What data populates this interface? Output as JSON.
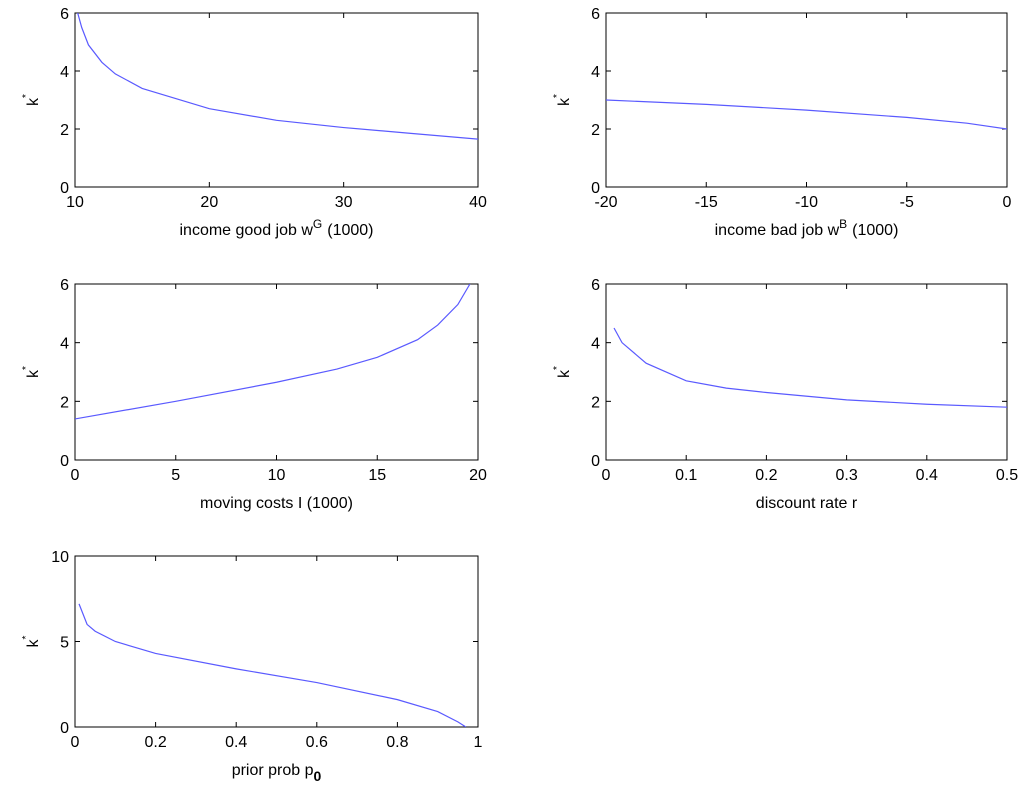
{
  "chart_data": [
    {
      "type": "line",
      "xlabel": "income good job w",
      "xlabel_sup": "G",
      "xlabel_after": "(1000)",
      "ylabel": "k",
      "ylabel_sup": "*",
      "x": [
        10.2,
        10.5,
        11,
        12,
        13,
        15,
        20,
        25,
        30,
        35,
        40
      ],
      "series": [
        {
          "color": "#5a5aff",
          "values": [
            6,
            5.5,
            4.9,
            4.3,
            3.9,
            3.4,
            2.7,
            2.3,
            2.05,
            1.85,
            1.65
          ]
        }
      ],
      "xlim": [
        10,
        40
      ],
      "xticks": [
        10,
        20,
        30,
        40
      ],
      "ylim": [
        0,
        6
      ],
      "yticks": [
        0,
        2,
        4,
        6
      ]
    },
    {
      "type": "line",
      "xlabel": "income bad job w",
      "xlabel_sup": "B",
      "xlabel_after": "(1000)",
      "ylabel": "k",
      "ylabel_sup": "*",
      "x": [
        -20,
        -15,
        -10,
        -5,
        -2,
        0
      ],
      "series": [
        {
          "color": "#5a5aff",
          "values": [
            3.0,
            2.85,
            2.65,
            2.4,
            2.2,
            2.0
          ]
        }
      ],
      "xlim": [
        -20,
        0
      ],
      "xticks": [
        -20,
        -15,
        -10,
        -5,
        0
      ],
      "ylim": [
        0,
        6
      ],
      "yticks": [
        0,
        2,
        4,
        6
      ]
    },
    {
      "type": "line",
      "xlabel": "moving costs I (1000)",
      "ylabel": "k",
      "ylabel_sup": "*",
      "x": [
        0,
        5,
        10,
        13,
        15,
        17,
        18,
        19,
        19.6
      ],
      "series": [
        {
          "color": "#5a5aff",
          "values": [
            1.4,
            2.0,
            2.65,
            3.1,
            3.5,
            4.1,
            4.6,
            5.3,
            6
          ]
        }
      ],
      "xlim": [
        0,
        20
      ],
      "xticks": [
        0,
        5,
        10,
        15,
        20
      ],
      "ylim": [
        0,
        6
      ],
      "yticks": [
        0,
        2,
        4,
        6
      ]
    },
    {
      "type": "line",
      "xlabel": "discount rate r",
      "ylabel": "k",
      "ylabel_sup": "*",
      "x": [
        0.01,
        0.02,
        0.05,
        0.1,
        0.15,
        0.2,
        0.3,
        0.4,
        0.5
      ],
      "series": [
        {
          "color": "#5a5aff",
          "values": [
            4.5,
            4.0,
            3.3,
            2.7,
            2.45,
            2.3,
            2.05,
            1.9,
            1.8
          ]
        }
      ],
      "xlim": [
        0,
        0.5
      ],
      "xticks": [
        0,
        0.1,
        0.2,
        0.3,
        0.4,
        0.5
      ],
      "ylim": [
        0,
        6
      ],
      "yticks": [
        0,
        2,
        4,
        6
      ]
    },
    {
      "type": "line",
      "xlabel": "prior prob p",
      "xlabel_sub": "0",
      "ylabel": "k",
      "ylabel_sup": "*",
      "x": [
        0.01,
        0.03,
        0.05,
        0.1,
        0.2,
        0.4,
        0.6,
        0.8,
        0.9,
        0.95,
        0.97
      ],
      "series": [
        {
          "color": "#5a5aff",
          "values": [
            7.2,
            6.0,
            5.6,
            5.0,
            4.3,
            3.4,
            2.6,
            1.6,
            0.9,
            0.3,
            0
          ]
        }
      ],
      "xlim": [
        0,
        1
      ],
      "xticks": [
        0,
        0.2,
        0.4,
        0.6,
        0.8,
        1
      ],
      "ylim": [
        0,
        10
      ],
      "yticks": [
        0,
        5,
        10
      ]
    }
  ]
}
